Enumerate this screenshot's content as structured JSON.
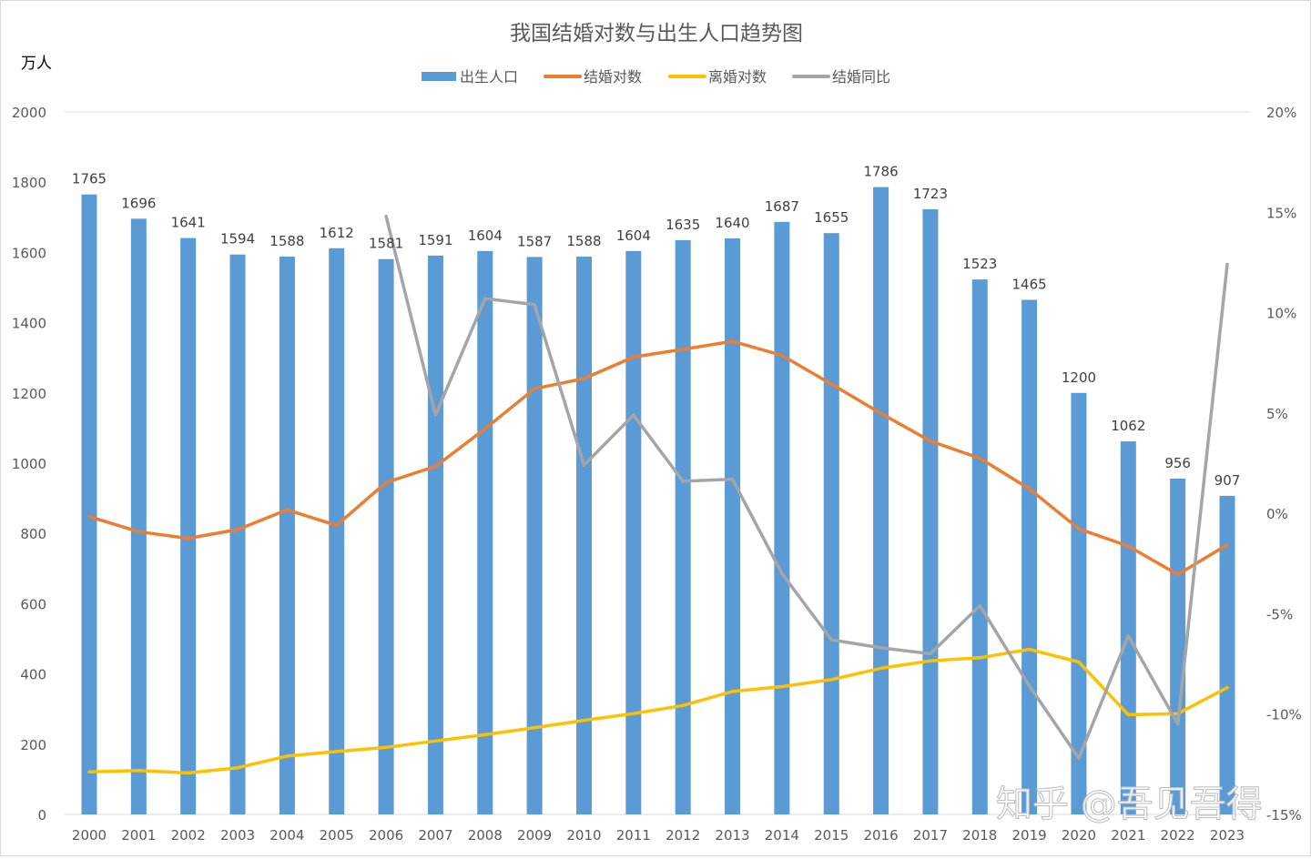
{
  "chart_data": {
    "type": "bar+line",
    "title": "我国结婚对数与出生人口趋势图",
    "ylabel_left": "万人",
    "ylim_left": [
      0,
      2000
    ],
    "yticks_left": [
      "0",
      "200",
      "400",
      "600",
      "800",
      "1000",
      "1200",
      "1400",
      "1600",
      "1800",
      "2000"
    ],
    "ylim_right": [
      -15,
      20
    ],
    "yticks_right": [
      "-15%",
      "-10%",
      "-5%",
      "0%",
      "5%",
      "10%",
      "15%",
      "20%"
    ],
    "legend_position": "top",
    "grid": false,
    "categories": [
      "2000",
      "2001",
      "2002",
      "2003",
      "2004",
      "2005",
      "2006",
      "2007",
      "2008",
      "2009",
      "2010",
      "2011",
      "2012",
      "2013",
      "2014",
      "2015",
      "2016",
      "2017",
      "2018",
      "2019",
      "2020",
      "2021",
      "2022",
      "2023"
    ],
    "series": [
      {
        "name": "出生人口",
        "type": "bar",
        "axis": "left",
        "color": "#5b9bd5",
        "values": [
          1765,
          1696,
          1641,
          1594,
          1588,
          1612,
          1581,
          1591,
          1604,
          1587,
          1588,
          1604,
          1635,
          1640,
          1687,
          1655,
          1786,
          1723,
          1523,
          1465,
          1200,
          1062,
          956,
          907
        ]
      },
      {
        "name": "结婚对数",
        "type": "line",
        "axis": "left",
        "color": "#ed7d31",
        "values": [
          848,
          805,
          786,
          811,
          867,
          823,
          945,
          991,
          1098,
          1212,
          1241,
          1302,
          1324,
          1347,
          1307,
          1225,
          1142,
          1063,
          1014,
          927,
          813,
          764,
          683,
          768
        ]
      },
      {
        "name": "离婚对数",
        "type": "line",
        "axis": "left",
        "color": "#ffc000",
        "values": [
          121,
          125,
          118,
          133,
          166,
          179,
          191,
          209,
          227,
          247,
          268,
          287,
          310,
          350,
          364,
          384,
          416,
          437,
          446,
          470,
          434,
          284,
          287,
          361
        ]
      },
      {
        "name": "结婚同比",
        "type": "line",
        "axis": "right",
        "color": "#a5a5a5",
        "values": [
          null,
          null,
          null,
          null,
          null,
          null,
          14.8,
          4.9,
          10.7,
          10.4,
          2.4,
          4.9,
          1.6,
          1.7,
          -3.0,
          -6.3,
          -6.7,
          -7.0,
          -4.6,
          -8.6,
          -12.2,
          -6.1,
          -10.5,
          12.4
        ]
      }
    ]
  },
  "watermark": "知乎 @吾见吾得"
}
